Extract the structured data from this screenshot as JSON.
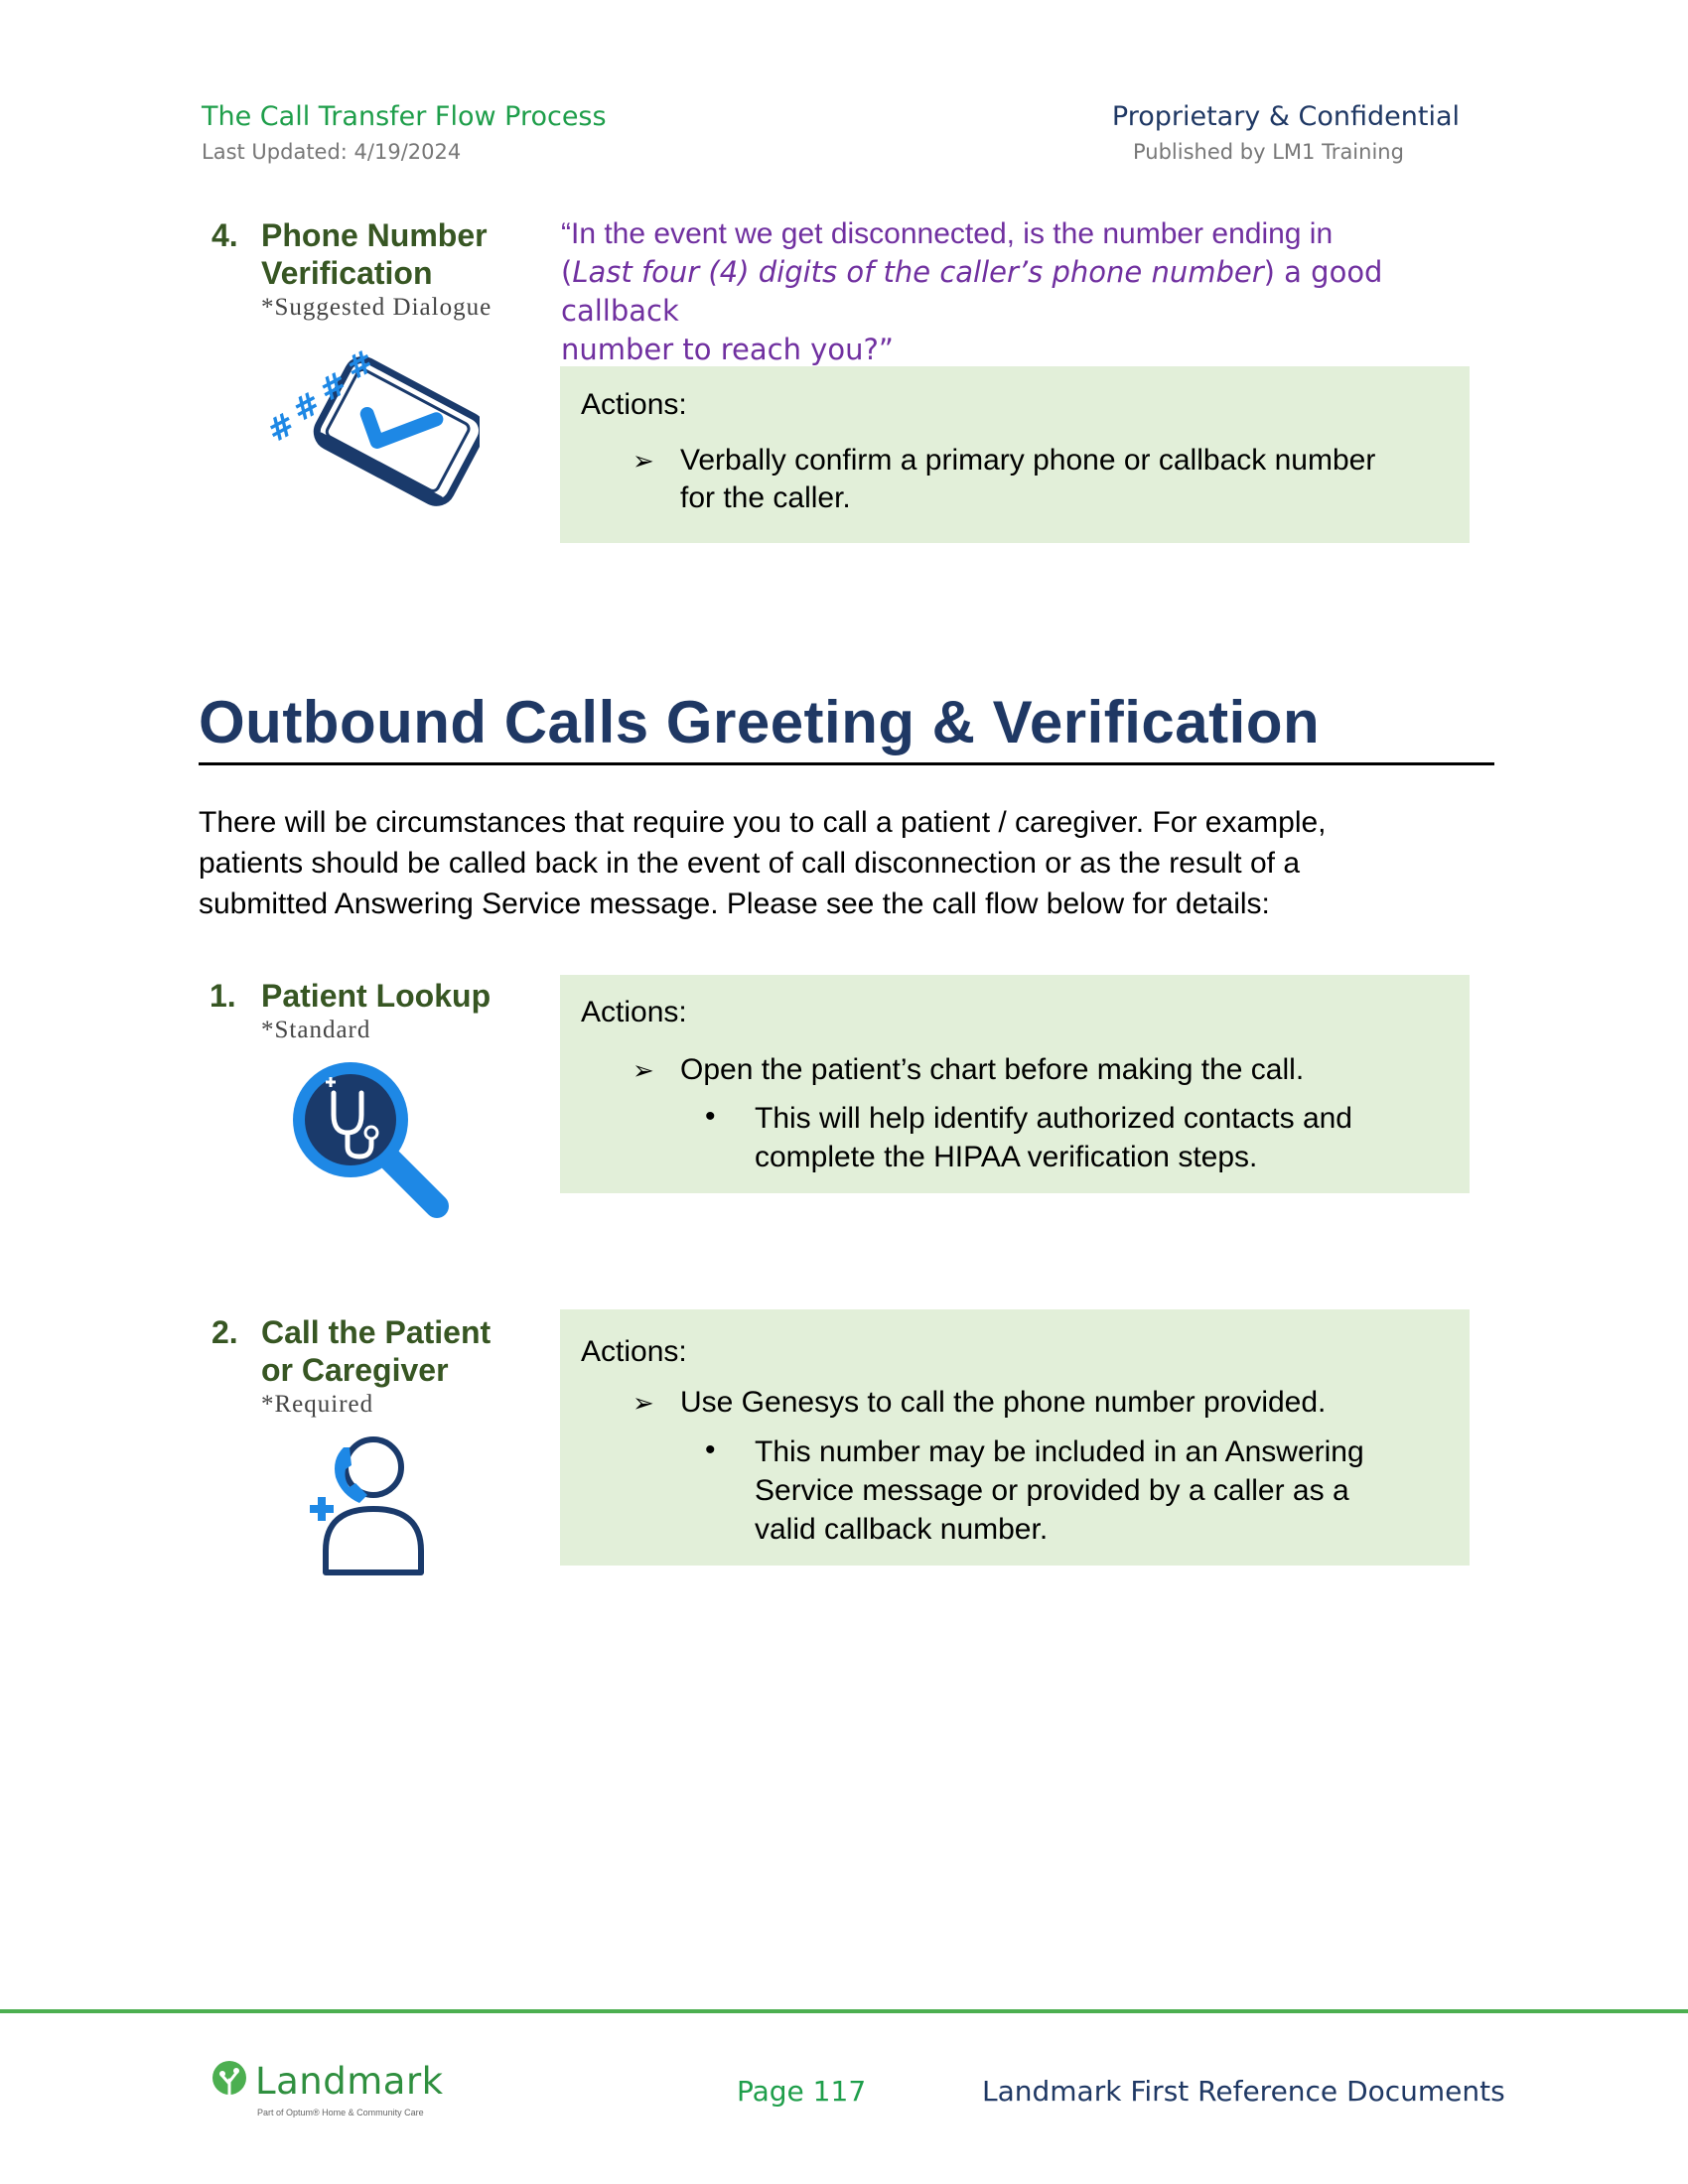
{
  "header": {
    "title": "The Call Transfer Flow Process",
    "last_updated": "Last Updated: 4/19/2024",
    "confidential": "Proprietary & Confidential",
    "published_by": "Published by LM1 Training"
  },
  "step4": {
    "number": "4.",
    "title_line1": "Phone Number",
    "title_line2": "Verification",
    "subtitle": "*Suggested Dialogue",
    "icon": "phone-verification-icon",
    "dialogue_part1": "“In the event we get disconnected, is the number ending in",
    "dialogue_paren_open": "(",
    "dialogue_italic": "Last four (4) digits of the caller’s phone number",
    "dialogue_paren_close": ") a good callback",
    "dialogue_line3": "number to reach you?”",
    "actions_label": "Actions:",
    "action1_line1": "Verbally confirm a primary phone or callback number",
    "action1_line2": "for the caller."
  },
  "section": {
    "heading": "Outbound Calls Greeting & Verification",
    "intro_line1": "There will be circumstances that require you to call a patient / caregiver. For example,",
    "intro_line2": "patients should be called back in the event of call disconnection or as the result of a",
    "intro_line3": "submitted Answering Service message. Please see the call flow below for details:"
  },
  "steps": [
    {
      "number": "1.",
      "title_line1": "Patient Lookup",
      "subtitle": "*Standard",
      "icon": "stethoscope-magnifier-icon",
      "actions_label": "Actions:",
      "action": "Open the patient’s chart before making the call.",
      "sub_line1": "This will help identify authorized contacts and",
      "sub_line2": "complete the HIPAA verification steps."
    },
    {
      "number": "2.",
      "title_line1": "Call the Patient",
      "title_line2": "or Caregiver",
      "subtitle": "*Required",
      "icon": "caller-person-icon",
      "actions_label": "Actions:",
      "action": "Use Genesys to call the phone number provided.",
      "sub_line1": "This number may be included in an Answering",
      "sub_line2": "Service message or provided by a caller as a",
      "sub_line3": "valid callback number."
    }
  ],
  "footer": {
    "logo_text": "Landmark",
    "logo_tagline": "Part of Optum® Home & Community Care",
    "page": "Page 117",
    "reference": "Landmark First Reference Documents"
  },
  "colors": {
    "header_green": "#1e9e4a",
    "navy": "#1f3864",
    "step_green": "#375623",
    "dialogue_purple": "#7030a0",
    "action_bg": "#e2efd9",
    "icon_blue": "#1e88e5",
    "icon_dark": "#1a3a6b",
    "footer_rule": "#4caf50"
  }
}
